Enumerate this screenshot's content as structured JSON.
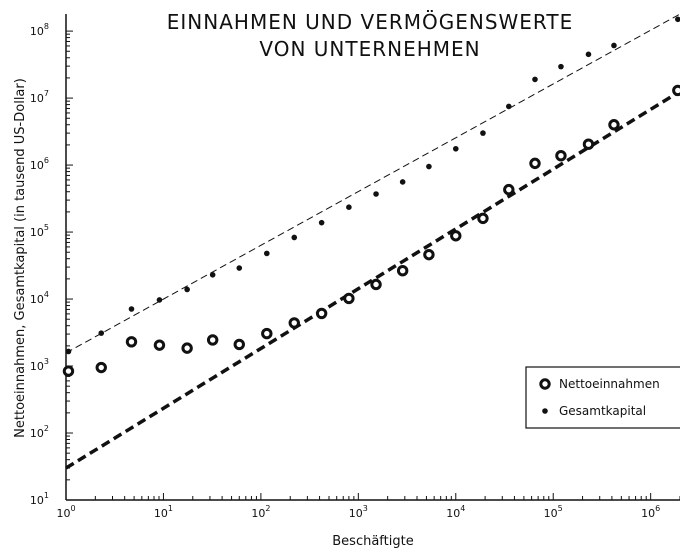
{
  "chart_data": {
    "type": "scatter",
    "title_lines": [
      "EINNAHMEN UND VERMÖGENSWERTE",
      "VON UNTERNEHMEN"
    ],
    "xlabel": "Beschäftigte",
    "ylabel": "Nettoeinnahmen, Gesamtkapital (in tausend US-Dollar)",
    "x_scale": "log",
    "y_scale": "log",
    "xlim": [
      1,
      2000000
    ],
    "ylim": [
      10,
      180000000
    ],
    "x_ticks": [
      {
        "base": "10",
        "exp": "0",
        "value": 1
      },
      {
        "base": "10",
        "exp": "1",
        "value": 10
      },
      {
        "base": "10",
        "exp": "2",
        "value": 100
      },
      {
        "base": "10",
        "exp": "3",
        "value": 1000
      },
      {
        "base": "10",
        "exp": "4",
        "value": 10000
      },
      {
        "base": "10",
        "exp": "5",
        "value": 100000
      },
      {
        "base": "10",
        "exp": "6",
        "value": 1000000
      }
    ],
    "y_ticks": [
      {
        "base": "10",
        "exp": "1",
        "value": 10
      },
      {
        "base": "10",
        "exp": "2",
        "value": 100
      },
      {
        "base": "10",
        "exp": "3",
        "value": 1000
      },
      {
        "base": "10",
        "exp": "4",
        "value": 10000
      },
      {
        "base": "10",
        "exp": "5",
        "value": 100000
      },
      {
        "base": "10",
        "exp": "6",
        "value": 1000000
      },
      {
        "base": "10",
        "exp": "7",
        "value": 10000000
      },
      {
        "base": "10",
        "exp": "8",
        "value": 100000000
      }
    ],
    "legend_position": "lower-right",
    "series": [
      {
        "name": "Nettoeinnahmen",
        "marker": "ring",
        "color": "#111111",
        "points": [
          [
            1.06,
            840
          ],
          [
            2.3,
            950
          ],
          [
            4.7,
            2300
          ],
          [
            9.1,
            2050
          ],
          [
            17.5,
            1850
          ],
          [
            32,
            2450
          ],
          [
            60,
            2100
          ],
          [
            115,
            3050
          ],
          [
            220,
            4400
          ],
          [
            420,
            6100
          ],
          [
            800,
            10200
          ],
          [
            1520,
            16500
          ],
          [
            2850,
            26500
          ],
          [
            5300,
            46000
          ],
          [
            10000,
            88000
          ],
          [
            19000,
            160000
          ],
          [
            35000,
            430000
          ],
          [
            65000,
            1060000
          ],
          [
            120000,
            1380000
          ],
          [
            230000,
            2050000
          ],
          [
            420000,
            4000000
          ],
          [
            1900000,
            13000000
          ]
        ]
      },
      {
        "name": "Gesamtkapital",
        "marker": "dot",
        "color": "#111111",
        "points": [
          [
            1.06,
            1650
          ],
          [
            2.3,
            3100
          ],
          [
            4.7,
            7100
          ],
          [
            9.1,
            9700
          ],
          [
            17.5,
            13900
          ],
          [
            32,
            23000
          ],
          [
            60,
            29000
          ],
          [
            115,
            48000
          ],
          [
            220,
            83000
          ],
          [
            420,
            138000
          ],
          [
            800,
            235000
          ],
          [
            1520,
            370000
          ],
          [
            2850,
            560000
          ],
          [
            5300,
            950000
          ],
          [
            10000,
            1750000
          ],
          [
            19000,
            3000000
          ],
          [
            35000,
            7500000
          ],
          [
            65000,
            19000000
          ],
          [
            120000,
            29500000
          ],
          [
            230000,
            45000000
          ],
          [
            420000,
            61000000
          ],
          [
            1900000,
            150000000
          ]
        ]
      }
    ],
    "fit_lines": [
      {
        "series": "Nettoeinnahmen",
        "style": "thick-dashed",
        "from": [
          1,
          30
        ],
        "to": [
          2000000,
          12600000
        ]
      },
      {
        "series": "Gesamtkapital",
        "style": "thin-dashed",
        "from": [
          1,
          1570
        ],
        "to": [
          2000000,
          180000000
        ]
      }
    ]
  }
}
